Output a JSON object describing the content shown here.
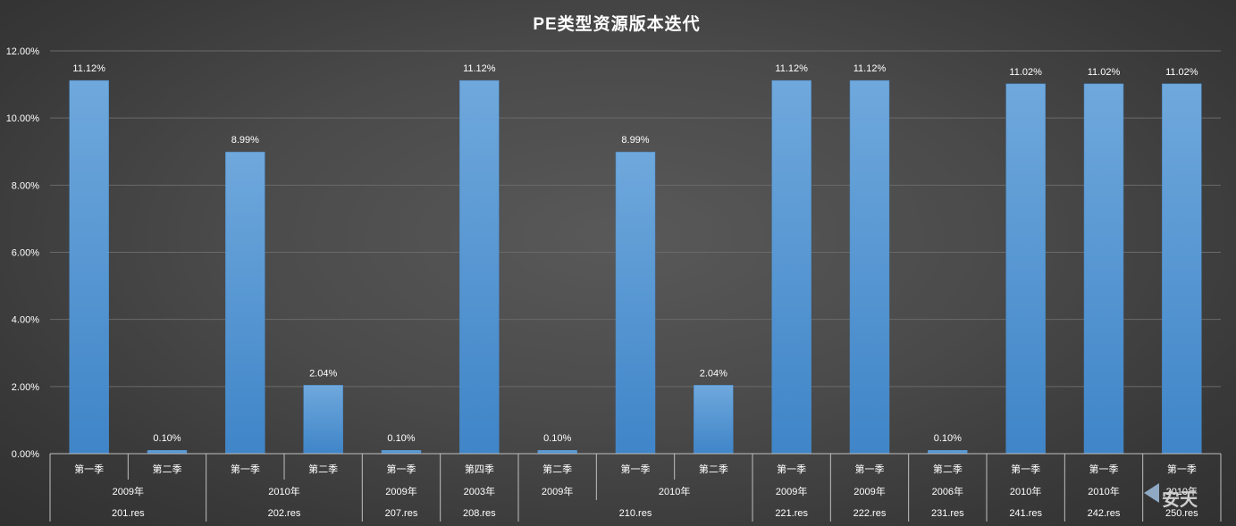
{
  "chart_data": {
    "type": "bar",
    "title": "PE类型资源版本迭代",
    "ylim": [
      0,
      12
    ],
    "yticks": [
      "0.00%",
      "2.00%",
      "4.00%",
      "6.00%",
      "8.00%",
      "10.00%",
      "12.00%"
    ],
    "grid": true,
    "bar_color": "#5b9bd5",
    "categories": [
      {
        "quarter": "第一季",
        "year": "2009年",
        "file": "201.res"
      },
      {
        "quarter": "第二季",
        "year": "2009年",
        "file": "201.res"
      },
      {
        "quarter": "第一季",
        "year": "2010年",
        "file": "202.res"
      },
      {
        "quarter": "第二季",
        "year": "2010年",
        "file": "202.res"
      },
      {
        "quarter": "第一季",
        "year": "2009年",
        "file": "207.res"
      },
      {
        "quarter": "第四季",
        "year": "2003年",
        "file": "208.res"
      },
      {
        "quarter": "第二季",
        "year": "2009年",
        "file": "210.res"
      },
      {
        "quarter": "第一季",
        "year": "2010年",
        "file": "210.res"
      },
      {
        "quarter": "第二季",
        "year": "2010年",
        "file": "210.res"
      },
      {
        "quarter": "第一季",
        "year": "2009年",
        "file": "221.res"
      },
      {
        "quarter": "第一季",
        "year": "2009年",
        "file": "222.res"
      },
      {
        "quarter": "第二季",
        "year": "2006年",
        "file": "231.res"
      },
      {
        "quarter": "第一季",
        "year": "2010年",
        "file": "241.res"
      },
      {
        "quarter": "第一季",
        "year": "2010年",
        "file": "242.res"
      },
      {
        "quarter": "第一季",
        "year": "2010年",
        "file": "250.res"
      }
    ],
    "values": [
      11.12,
      0.1,
      8.99,
      2.04,
      0.1,
      11.12,
      0.1,
      8.99,
      2.04,
      11.12,
      11.12,
      0.1,
      11.02,
      11.02,
      11.02
    ],
    "data_labels": [
      "11.12%",
      "0.10%",
      "8.99%",
      "2.04%",
      "0.10%",
      "11.12%",
      "0.10%",
      "8.99%",
      "2.04%",
      "11.12%",
      "11.12%",
      "0.10%",
      "11.02%",
      "11.02%",
      "11.02%"
    ]
  },
  "watermark": "安天"
}
